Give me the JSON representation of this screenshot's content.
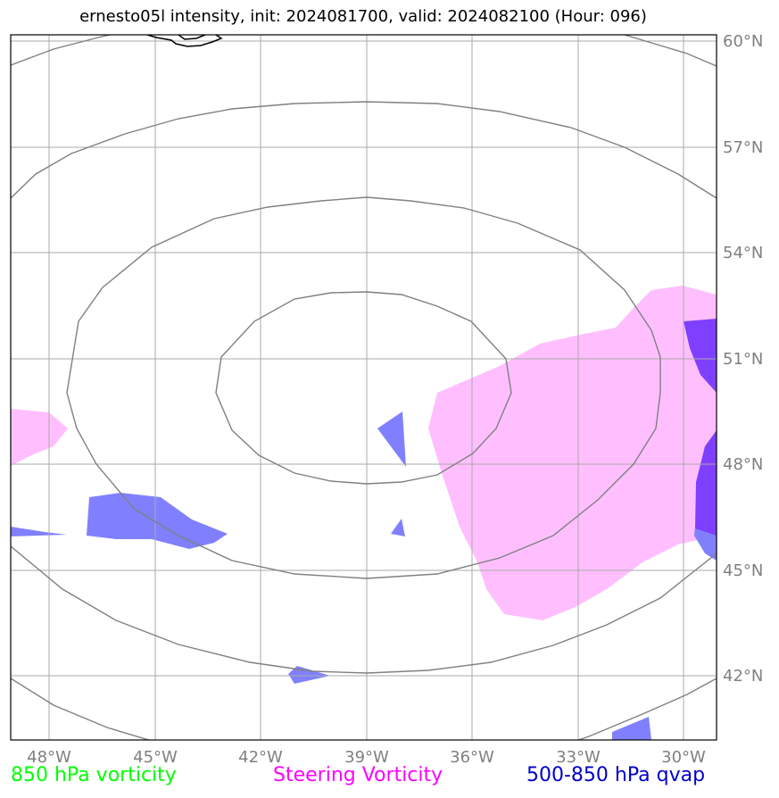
{
  "title": "ernesto05l intensity, init: 2024081700, valid: 2024082100 (Hour: 096)",
  "map": {
    "lon_ticks": [
      "48°W",
      "45°W",
      "42°W",
      "39°W",
      "36°W",
      "33°W",
      "30°W"
    ],
    "lat_ticks": [
      "60°N",
      "57°N",
      "54°N",
      "51°N",
      "48°N",
      "45°N",
      "42°N"
    ],
    "lon_range_deg": [
      -49,
      -29
    ],
    "lat_range_deg": [
      40,
      60
    ],
    "storm_center": {
      "lon": -39,
      "lat": 50
    }
  },
  "legend": [
    {
      "label": "850 hPa vorticity",
      "color": "#00ff00"
    },
    {
      "label": "Steering Vorticity",
      "color": "#ff00ff"
    },
    {
      "label": "500-850 hPa qvap",
      "color": "#0000cc"
    }
  ],
  "colors": {
    "steering_fill": "#ffbfff",
    "qvap_fill": "#8080ff",
    "qvap_dark": "#7f3fff",
    "grid": "#aaaaaa",
    "ring": "#808080"
  }
}
